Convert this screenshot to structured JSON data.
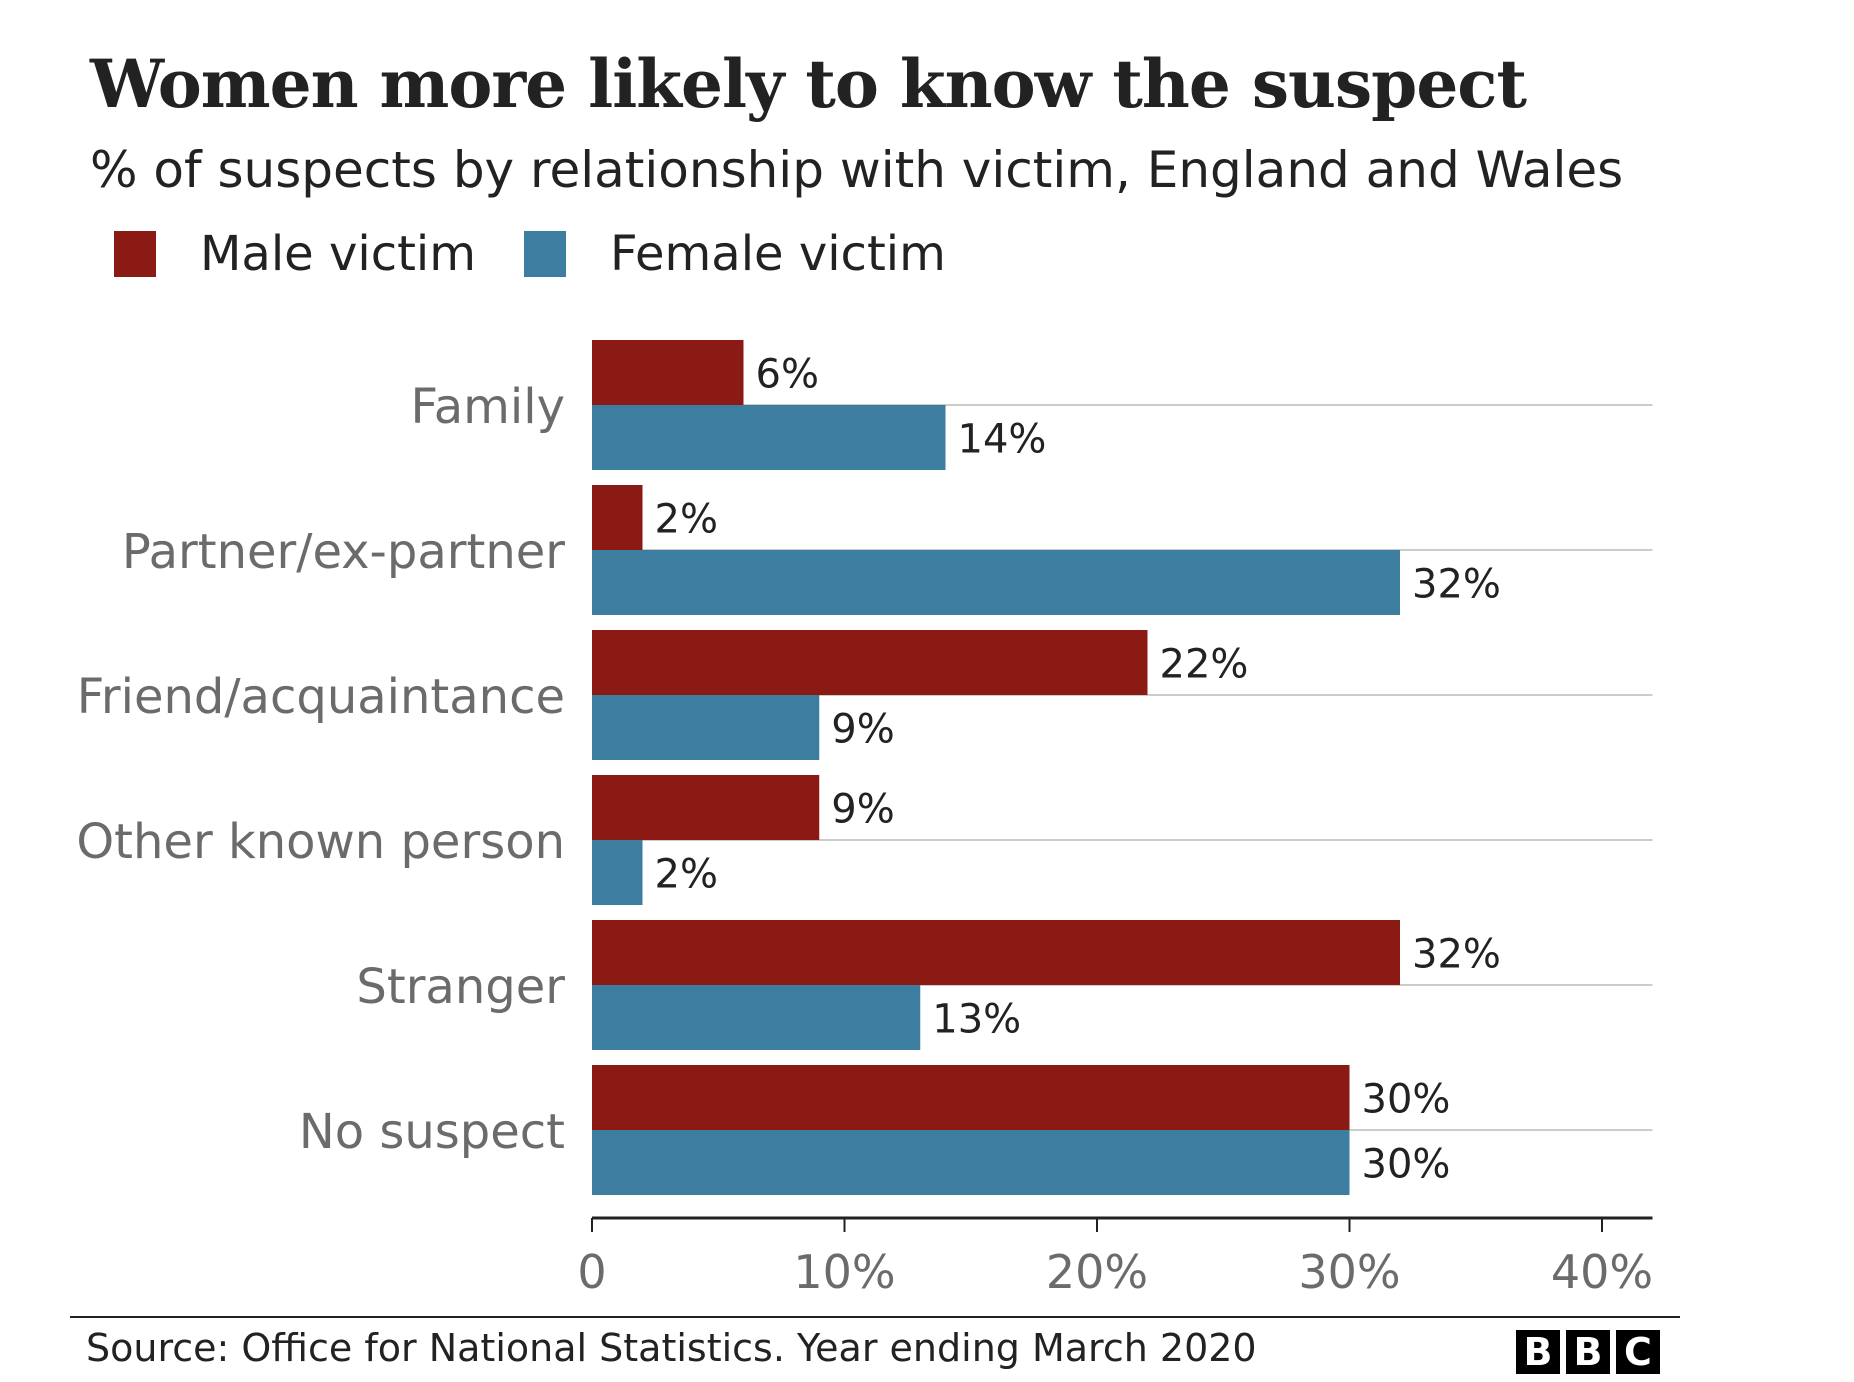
{
  "title": "Women more likely to know the suspect",
  "subtitle": "% of suspects by relationship with victim, England and Wales",
  "legend": {
    "male_label": "Male victim",
    "female_label": "Female victim"
  },
  "colors": {
    "male": "#8c1a14",
    "female": "#3d7ea0",
    "grid": "#cccccc",
    "axis": "#222222",
    "category_text": "#6b6b6b",
    "tick_text": "#6b6b6b"
  },
  "chart_data": {
    "type": "bar",
    "orientation": "horizontal",
    "categories": [
      "Family",
      "Partner/ex-partner",
      "Friend/acquaintance",
      "Other known person",
      "Stranger",
      "No suspect"
    ],
    "series": [
      {
        "name": "Male victim",
        "values": [
          6,
          2,
          22,
          9,
          32,
          30
        ],
        "labels": [
          "6%",
          "2%",
          "22%",
          "9%",
          "32%",
          "30%"
        ]
      },
      {
        "name": "Female victim",
        "values": [
          14,
          32,
          9,
          2,
          13,
          30
        ],
        "labels": [
          "14%",
          "32%",
          "9%",
          "2%",
          "13%",
          "30%"
        ]
      }
    ],
    "xlim": [
      0,
      42
    ],
    "xticks": [
      0,
      10,
      20,
      30,
      40
    ],
    "xtick_labels": [
      "0",
      "10%",
      "20%",
      "30%",
      "40%"
    ],
    "grid": "horizontal lines between bar pairs",
    "legend_position": "top-left"
  },
  "source": "Source: Office for National Statistics. Year ending March 2020",
  "logo": [
    "B",
    "B",
    "C"
  ]
}
